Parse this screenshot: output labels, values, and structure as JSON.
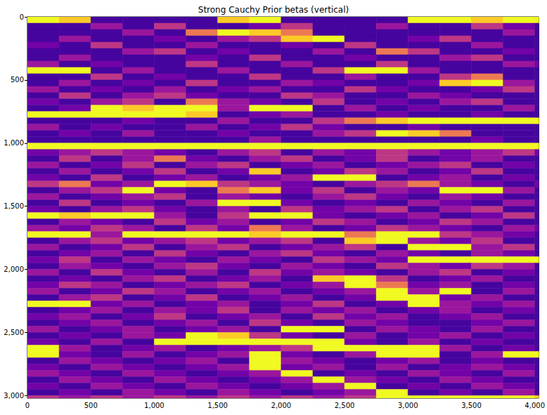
{
  "chart_data": {
    "type": "heatmap",
    "title": "Strong Cauchy Prior betas (vertical)",
    "x_edges": [
      0,
      250,
      500,
      750,
      1000,
      1250,
      1500,
      1750,
      2000,
      2250,
      2500,
      2750,
      3000,
      3250,
      3500,
      3750,
      4000,
      4032
    ],
    "y_edges": [
      0,
      50,
      100,
      150,
      200,
      250,
      300,
      350,
      400,
      450,
      500,
      550,
      600,
      650,
      700,
      750,
      800,
      850,
      900,
      950,
      1000,
      1050,
      1100,
      1150,
      1200,
      1250,
      1300,
      1350,
      1400,
      1450,
      1500,
      1550,
      1600,
      1650,
      1700,
      1750,
      1800,
      1850,
      1900,
      1950,
      2000,
      2050,
      2100,
      2150,
      2200,
      2250,
      2300,
      2350,
      2400,
      2450,
      2500,
      2550,
      2600,
      2650,
      2700,
      2750,
      2800,
      2850,
      2900,
      2950,
      3000,
      3020
    ],
    "cells": [
      [
        9,
        8,
        1,
        1,
        1,
        1,
        8,
        9,
        1,
        1,
        1,
        1,
        9,
        9,
        8,
        9,
        9
      ],
      [
        1,
        1,
        3,
        1,
        4,
        1,
        1,
        2,
        4,
        1,
        1,
        3,
        1,
        1,
        4,
        2,
        1
      ],
      [
        1,
        1,
        1,
        3,
        1,
        6,
        9,
        8,
        6,
        1,
        1,
        1,
        1,
        1,
        1,
        3,
        1
      ],
      [
        1,
        3,
        1,
        1,
        2,
        1,
        3,
        4,
        8,
        9,
        1,
        1,
        2,
        4,
        1,
        1,
        1
      ],
      [
        2,
        1,
        4,
        1,
        1,
        3,
        1,
        1,
        2,
        1,
        4,
        1,
        1,
        1,
        3,
        1,
        1
      ],
      [
        1,
        1,
        1,
        3,
        4,
        1,
        2,
        1,
        1,
        3,
        1,
        6,
        4,
        1,
        1,
        2,
        1
      ],
      [
        1,
        3,
        1,
        1,
        1,
        2,
        1,
        4,
        1,
        1,
        2,
        1,
        1,
        3,
        4,
        1,
        1
      ],
      [
        3,
        1,
        2,
        1,
        1,
        4,
        1,
        1,
        3,
        1,
        1,
        4,
        1,
        1,
        1,
        3,
        2
      ],
      [
        9,
        9,
        1,
        3,
        1,
        1,
        3,
        1,
        1,
        4,
        9,
        9,
        3,
        1,
        1,
        1,
        1
      ],
      [
        1,
        1,
        4,
        1,
        2,
        1,
        1,
        4,
        1,
        1,
        3,
        1,
        1,
        4,
        6,
        1,
        1
      ],
      [
        1,
        3,
        1,
        2,
        1,
        4,
        1,
        1,
        3,
        2,
        1,
        1,
        2,
        8,
        9,
        3,
        1
      ],
      [
        3,
        1,
        2,
        1,
        3,
        1,
        2,
        3,
        1,
        1,
        4,
        2,
        1,
        1,
        2,
        4,
        1
      ],
      [
        1,
        4,
        1,
        3,
        4,
        2,
        1,
        1,
        4,
        3,
        1,
        1,
        3,
        2,
        1,
        1,
        1
      ],
      [
        2,
        1,
        3,
        4,
        1,
        6,
        3,
        2,
        1,
        4,
        1,
        2,
        1,
        3,
        4,
        1,
        1
      ],
      [
        1,
        2,
        9,
        8,
        9,
        9,
        3,
        9,
        9,
        1,
        3,
        1,
        2,
        1,
        1,
        3,
        1
      ],
      [
        9,
        9,
        9,
        9,
        9,
        8,
        1,
        2,
        3,
        1,
        1,
        2,
        1,
        1,
        2,
        1,
        1
      ],
      [
        1,
        1,
        1,
        2,
        1,
        1,
        3,
        1,
        1,
        4,
        6,
        8,
        9,
        9,
        9,
        9,
        9
      ],
      [
        3,
        1,
        2,
        1,
        1,
        3,
        1,
        2,
        4,
        2,
        1,
        1,
        2,
        1,
        1,
        1,
        1
      ],
      [
        1,
        2,
        1,
        3,
        1,
        1,
        2,
        1,
        1,
        3,
        4,
        9,
        8,
        6,
        1,
        1,
        1
      ],
      [
        1,
        1,
        1,
        1,
        1,
        1,
        1,
        3,
        1,
        1,
        1,
        1,
        1,
        1,
        2,
        1,
        1
      ],
      [
        9,
        9,
        9,
        9,
        9,
        9,
        9,
        9,
        9,
        9,
        9,
        9,
        9,
        9,
        9,
        9,
        9
      ],
      [
        2,
        3,
        4,
        3,
        2,
        1,
        3,
        4,
        1,
        3,
        2,
        4,
        3,
        2,
        3,
        4,
        2
      ],
      [
        1,
        4,
        1,
        3,
        6,
        2,
        1,
        3,
        4,
        1,
        2,
        4,
        1,
        2,
        3,
        1,
        1
      ],
      [
        3,
        1,
        2,
        4,
        1,
        3,
        4,
        1,
        2,
        3,
        1,
        2,
        3,
        4,
        1,
        2,
        1
      ],
      [
        1,
        3,
        1,
        2,
        4,
        1,
        2,
        8,
        1,
        2,
        4,
        3,
        1,
        2,
        4,
        1,
        1
      ],
      [
        2,
        1,
        4,
        1,
        2,
        3,
        1,
        2,
        3,
        9,
        9,
        1,
        2,
        3,
        1,
        2,
        1
      ],
      [
        4,
        6,
        2,
        3,
        9,
        8,
        4,
        3,
        2,
        1,
        3,
        4,
        6,
        3,
        2,
        1,
        2
      ],
      [
        1,
        3,
        4,
        9,
        2,
        1,
        6,
        8,
        2,
        4,
        1,
        3,
        2,
        9,
        9,
        3,
        1
      ],
      [
        3,
        1,
        2,
        3,
        4,
        1,
        3,
        2,
        1,
        3,
        4,
        2,
        1,
        3,
        2,
        1,
        1
      ],
      [
        1,
        4,
        1,
        2,
        1,
        3,
        9,
        9,
        2,
        1,
        2,
        1,
        3,
        2,
        1,
        3,
        1
      ],
      [
        2,
        1,
        3,
        4,
        2,
        1,
        3,
        1,
        4,
        2,
        3,
        4,
        1,
        3,
        4,
        1,
        1
      ],
      [
        9,
        8,
        9,
        9,
        3,
        1,
        4,
        9,
        9,
        2,
        1,
        2,
        3,
        1,
        2,
        4,
        1
      ],
      [
        1,
        3,
        2,
        1,
        4,
        2,
        3,
        1,
        2,
        4,
        3,
        1,
        2,
        4,
        3,
        1,
        1
      ],
      [
        3,
        2,
        4,
        3,
        1,
        4,
        2,
        6,
        3,
        1,
        2,
        4,
        3,
        2,
        1,
        3,
        2
      ],
      [
        9,
        9,
        3,
        9,
        9,
        9,
        9,
        8,
        9,
        9,
        6,
        9,
        9,
        4,
        3,
        2,
        1
      ],
      [
        1,
        3,
        4,
        2,
        3,
        4,
        2,
        3,
        4,
        1,
        8,
        9,
        3,
        2,
        4,
        1,
        1
      ],
      [
        3,
        1,
        2,
        4,
        1,
        3,
        4,
        1,
        2,
        3,
        4,
        1,
        9,
        9,
        3,
        4,
        1
      ],
      [
        1,
        2,
        3,
        1,
        4,
        2,
        1,
        3,
        4,
        2,
        1,
        3,
        2,
        1,
        3,
        2,
        1
      ],
      [
        2,
        4,
        1,
        3,
        2,
        1,
        3,
        2,
        1,
        4,
        3,
        2,
        9,
        9,
        9,
        9,
        9
      ],
      [
        1,
        3,
        2,
        1,
        3,
        4,
        2,
        1,
        3,
        2,
        1,
        4,
        3,
        2,
        4,
        3,
        1
      ],
      [
        3,
        1,
        4,
        2,
        1,
        3,
        1,
        4,
        2,
        3,
        2,
        1,
        3,
        4,
        1,
        2,
        1
      ],
      [
        1,
        2,
        1,
        3,
        4,
        1,
        2,
        3,
        1,
        8,
        9,
        4,
        1,
        2,
        3,
        1,
        1
      ],
      [
        2,
        4,
        3,
        1,
        2,
        3,
        4,
        1,
        2,
        3,
        9,
        6,
        2,
        3,
        1,
        2,
        1
      ],
      [
        3,
        1,
        2,
        4,
        3,
        1,
        2,
        3,
        1,
        2,
        3,
        9,
        3,
        9,
        1,
        3,
        1
      ],
      [
        1,
        3,
        4,
        1,
        2,
        4,
        1,
        2,
        3,
        1,
        2,
        9,
        9,
        2,
        3,
        1,
        1
      ],
      [
        9,
        9,
        2,
        3,
        1,
        2,
        3,
        1,
        2,
        4,
        1,
        2,
        9,
        3,
        2,
        3,
        1
      ],
      [
        1,
        2,
        3,
        1,
        3,
        2,
        4,
        1,
        3,
        2,
        3,
        1,
        2,
        3,
        1,
        2,
        1
      ],
      [
        2,
        3,
        1,
        2,
        4,
        1,
        2,
        3,
        1,
        4,
        2,
        3,
        1,
        2,
        3,
        1,
        1
      ],
      [
        1,
        2,
        3,
        1,
        2,
        3,
        1,
        4,
        2,
        1,
        3,
        2,
        1,
        1,
        2,
        3,
        1
      ],
      [
        3,
        1,
        2,
        3,
        1,
        2,
        3,
        1,
        9,
        9,
        1,
        3,
        2,
        1,
        3,
        1,
        1
      ],
      [
        1,
        2,
        1,
        3,
        2,
        9,
        8,
        4,
        2,
        1,
        3,
        1,
        2,
        3,
        1,
        2,
        1
      ],
      [
        2,
        1,
        3,
        1,
        9,
        9,
        9,
        9,
        9,
        9,
        2,
        1,
        3,
        1,
        2,
        1,
        1
      ],
      [
        9,
        3,
        1,
        2,
        3,
        1,
        2,
        3,
        4,
        9,
        9,
        9,
        9,
        3,
        1,
        2,
        1
      ],
      [
        9,
        2,
        1,
        3,
        1,
        2,
        3,
        9,
        2,
        1,
        3,
        9,
        9,
        1,
        3,
        9,
        9
      ],
      [
        1,
        3,
        2,
        1,
        2,
        3,
        1,
        9,
        3,
        2,
        1,
        2,
        3,
        1,
        2,
        1,
        1
      ],
      [
        2,
        1,
        3,
        2,
        1,
        2,
        3,
        9,
        2,
        3,
        1,
        3,
        1,
        2,
        3,
        2,
        1
      ],
      [
        3,
        2,
        1,
        3,
        2,
        1,
        2,
        3,
        9,
        1,
        2,
        1,
        3,
        2,
        1,
        3,
        1
      ],
      [
        1,
        3,
        2,
        1,
        3,
        2,
        1,
        2,
        3,
        9,
        3,
        2,
        1,
        3,
        2,
        1,
        1
      ],
      [
        2,
        1,
        3,
        2,
        1,
        3,
        2,
        1,
        2,
        3,
        9,
        1,
        2,
        1,
        3,
        2,
        1
      ],
      [
        1,
        2,
        1,
        3,
        2,
        1,
        3,
        2,
        1,
        2,
        3,
        9,
        1,
        2,
        1,
        3,
        1
      ],
      [
        4,
        3,
        4,
        3,
        4,
        3,
        4,
        3,
        4,
        3,
        4,
        9,
        9,
        9,
        9,
        9,
        8
      ]
    ],
    "color_range": [
      0,
      9
    ],
    "xlim": [
      0,
      4032
    ],
    "xticks": [
      0,
      500,
      1000,
      1500,
      2000,
      2500,
      3000,
      3500,
      4000
    ],
    "ylim": [
      3020,
      0
    ],
    "yticks": [
      0,
      500,
      1000,
      1500,
      2000,
      2500,
      3000
    ],
    "grid": false
  }
}
